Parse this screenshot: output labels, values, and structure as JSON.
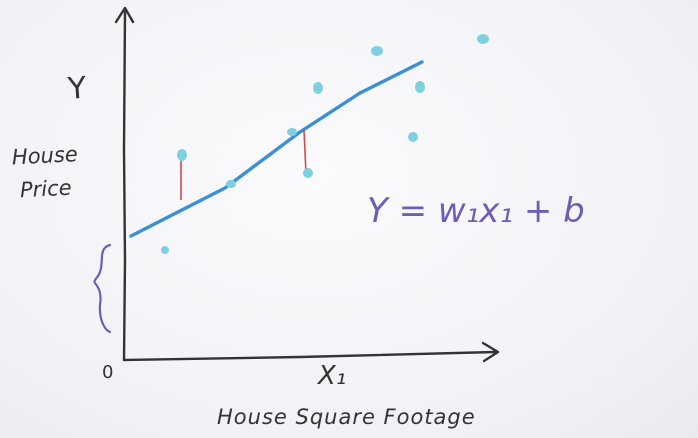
{
  "labels": {
    "y_symbol": "Y",
    "y_axis_line1": "House",
    "y_axis_line2": "Price",
    "origin": "0",
    "x_symbol": "X₁",
    "x_axis": "House Square Footage",
    "equation": "Y = w₁x₁ + b"
  },
  "colors": {
    "ink": "#333333",
    "fit_line": "#3b8fd4",
    "points": "#7ecfe0",
    "residual": "#d94848",
    "equation": "#6a5fb8",
    "brace": "#6a5fb8"
  },
  "icons": {
    "intercept_marker": "curly-brace-icon",
    "x_arrow": "arrow-right-icon",
    "y_arrow": "arrow-up-icon"
  }
}
